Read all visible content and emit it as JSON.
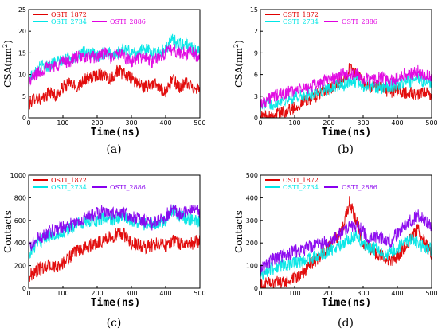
{
  "chart_data": [
    {
      "panel_label": "(a)",
      "type": "line",
      "xlabel": "Time(ns)",
      "ylabel": "CSA(nm²)",
      "ylabel_base": "CSA(nm",
      "ylabel_sup": "2",
      "ylabel_tail": ")",
      "xlim": [
        0,
        500
      ],
      "ylim": [
        0,
        25
      ],
      "xticks": [
        0,
        100,
        200,
        300,
        400,
        500
      ],
      "yticks": [
        0,
        5,
        10,
        15,
        20,
        25
      ],
      "legend": [
        "OSTI_1872",
        "OSTI_2734",
        "OSTI_2886"
      ],
      "series": [
        {
          "name": "OSTI_1872",
          "color": "#e00000",
          "x": [
            0,
            20,
            40,
            60,
            80,
            100,
            120,
            140,
            160,
            180,
            200,
            220,
            240,
            260,
            280,
            300,
            320,
            340,
            360,
            380,
            400,
            420,
            440,
            460,
            480,
            500
          ],
          "y": [
            3,
            5,
            4,
            6,
            5,
            7,
            8,
            7,
            9,
            9,
            10,
            10,
            9,
            11,
            10,
            9,
            8,
            7,
            8,
            7,
            6,
            9,
            7,
            8,
            7,
            7
          ]
        },
        {
          "name": "OSTI_2734",
          "color": "#00e6e6",
          "x": [
            0,
            20,
            40,
            60,
            80,
            100,
            120,
            140,
            160,
            180,
            200,
            220,
            240,
            260,
            280,
            300,
            320,
            340,
            360,
            380,
            400,
            420,
            440,
            460,
            480,
            500
          ],
          "y": [
            9,
            11,
            12,
            12,
            13,
            13,
            14,
            14,
            15,
            15,
            14,
            15,
            15,
            15,
            16,
            15,
            15,
            16,
            15,
            15,
            16,
            18,
            17,
            17,
            16,
            15
          ]
        },
        {
          "name": "OSTI_2886",
          "color": "#e000e0",
          "x": [
            0,
            20,
            40,
            60,
            80,
            100,
            120,
            140,
            160,
            180,
            200,
            220,
            240,
            260,
            280,
            300,
            320,
            340,
            360,
            380,
            400,
            420,
            440,
            460,
            480,
            500
          ],
          "y": [
            8,
            10,
            11,
            12,
            12,
            13,
            13,
            14,
            14,
            14,
            14,
            15,
            14,
            15,
            14,
            13,
            14,
            14,
            13,
            14,
            15,
            16,
            15,
            15,
            15,
            14
          ]
        }
      ]
    },
    {
      "panel_label": "(b)",
      "type": "line",
      "xlabel": "Time(ns)",
      "ylabel": "CSA(nm²)",
      "ylabel_base": "CSA(nm",
      "ylabel_sup": "2",
      "ylabel_tail": ")",
      "xlim": [
        0,
        500
      ],
      "ylim": [
        0,
        15
      ],
      "xticks": [
        0,
        100,
        200,
        300,
        400,
        500
      ],
      "yticks": [
        0,
        3,
        6,
        9,
        12,
        15
      ],
      "legend": [
        "OSTI_1872",
        "OSTI_2734",
        "OSTI_2886"
      ],
      "series": [
        {
          "name": "OSTI_1872",
          "color": "#e00000",
          "x": [
            0,
            20,
            40,
            60,
            80,
            100,
            120,
            140,
            160,
            180,
            200,
            220,
            240,
            260,
            280,
            300,
            320,
            340,
            360,
            380,
            400,
            420,
            440,
            460,
            480,
            500
          ],
          "y": [
            0,
            0.3,
            0.5,
            0.8,
            1,
            1.5,
            2,
            2.5,
            3,
            3.5,
            4,
            4.5,
            5,
            7,
            6,
            5,
            4,
            4.5,
            4,
            3.5,
            4,
            3.5,
            3.5,
            3,
            3.5,
            3
          ]
        },
        {
          "name": "OSTI_2734",
          "color": "#00e6e6",
          "x": [
            0,
            20,
            40,
            60,
            80,
            100,
            120,
            140,
            160,
            180,
            200,
            220,
            240,
            260,
            280,
            300,
            320,
            340,
            360,
            380,
            400,
            420,
            440,
            460,
            480,
            500
          ],
          "y": [
            1.5,
            2,
            2,
            2.5,
            2.5,
            3,
            3,
            3.2,
            3.5,
            3.8,
            4,
            4.5,
            4.5,
            5,
            5,
            4.5,
            4.5,
            4.2,
            4,
            4.5,
            4.5,
            5,
            5,
            5.5,
            5,
            4.5
          ]
        },
        {
          "name": "OSTI_2886",
          "color": "#e000e0",
          "x": [
            0,
            20,
            40,
            60,
            80,
            100,
            120,
            140,
            160,
            180,
            200,
            220,
            240,
            260,
            280,
            300,
            320,
            340,
            360,
            380,
            400,
            420,
            440,
            460,
            480,
            500
          ],
          "y": [
            2,
            2.5,
            3,
            3.2,
            3.5,
            3.8,
            4,
            4.2,
            4.5,
            5,
            5.5,
            5.5,
            6,
            6,
            6,
            5.5,
            5,
            5.5,
            5.5,
            5,
            5.5,
            6,
            6,
            6.5,
            6,
            5.5
          ]
        }
      ]
    },
    {
      "panel_label": "(c)",
      "type": "line",
      "xlabel": "Time(ns)",
      "ylabel": "Contacts",
      "xlim": [
        0,
        500
      ],
      "ylim": [
        0,
        1000
      ],
      "xticks": [
        0,
        100,
        200,
        300,
        400,
        500
      ],
      "yticks": [
        0,
        200,
        400,
        600,
        800,
        1000
      ],
      "legend": [
        "OSTI_1872",
        "OSTI_2734",
        "OSTI_2886"
      ],
      "series": [
        {
          "name": "OSTI_1872",
          "color": "#e00000",
          "x": [
            0,
            20,
            40,
            60,
            80,
            100,
            120,
            140,
            160,
            180,
            200,
            220,
            240,
            260,
            280,
            300,
            320,
            340,
            360,
            380,
            400,
            420,
            440,
            460,
            480,
            500
          ],
          "y": [
            100,
            150,
            180,
            200,
            180,
            220,
            280,
            320,
            350,
            380,
            400,
            430,
            450,
            480,
            470,
            400,
            380,
            360,
            380,
            400,
            380,
            420,
            400,
            380,
            400,
            420
          ]
        },
        {
          "name": "OSTI_2734",
          "color": "#00e6e6",
          "x": [
            0,
            20,
            40,
            60,
            80,
            100,
            120,
            140,
            160,
            180,
            200,
            220,
            240,
            260,
            280,
            300,
            320,
            340,
            360,
            380,
            400,
            420,
            440,
            460,
            480,
            500
          ],
          "y": [
            300,
            380,
            420,
            460,
            480,
            500,
            520,
            560,
            580,
            600,
            600,
            620,
            600,
            620,
            640,
            600,
            580,
            560,
            580,
            560,
            600,
            700,
            650,
            620,
            600,
            580
          ]
        },
        {
          "name": "OSTI_2886",
          "color": "#8800ee",
          "x": [
            0,
            20,
            40,
            60,
            80,
            100,
            120,
            140,
            160,
            180,
            200,
            220,
            240,
            260,
            280,
            300,
            320,
            340,
            360,
            380,
            400,
            420,
            440,
            460,
            480,
            500
          ],
          "y": [
            350,
            420,
            460,
            500,
            520,
            540,
            560,
            580,
            620,
            640,
            660,
            680,
            650,
            680,
            660,
            640,
            620,
            600,
            560,
            600,
            640,
            700,
            660,
            680,
            700,
            680
          ]
        }
      ]
    },
    {
      "panel_label": "(d)",
      "type": "line",
      "xlabel": "Time(ns)",
      "ylabel": "Contacts",
      "xlim": [
        0,
        500
      ],
      "ylim": [
        0,
        500
      ],
      "xticks": [
        0,
        100,
        200,
        300,
        400,
        500
      ],
      "yticks": [
        0,
        100,
        200,
        300,
        400,
        500
      ],
      "legend": [
        "OSTI_1872",
        "OSTI_2734",
        "OSTI_2886"
      ],
      "series": [
        {
          "name": "OSTI_1872",
          "color": "#e00000",
          "x": [
            0,
            20,
            40,
            60,
            80,
            100,
            120,
            140,
            160,
            180,
            200,
            220,
            240,
            260,
            280,
            300,
            320,
            340,
            360,
            380,
            400,
            420,
            440,
            460,
            480,
            500
          ],
          "y": [
            10,
            20,
            30,
            20,
            30,
            40,
            60,
            100,
            120,
            150,
            180,
            220,
            260,
            380,
            300,
            200,
            180,
            150,
            140,
            120,
            140,
            180,
            220,
            260,
            200,
            150
          ]
        },
        {
          "name": "OSTI_2734",
          "color": "#00e6e6",
          "x": [
            0,
            20,
            40,
            60,
            80,
            100,
            120,
            140,
            160,
            180,
            200,
            220,
            240,
            260,
            280,
            300,
            320,
            340,
            360,
            380,
            400,
            420,
            440,
            460,
            480,
            500
          ],
          "y": [
            60,
            80,
            90,
            100,
            100,
            110,
            120,
            130,
            140,
            150,
            170,
            180,
            200,
            220,
            230,
            200,
            180,
            170,
            150,
            160,
            180,
            200,
            220,
            200,
            180,
            170
          ]
        },
        {
          "name": "OSTI_2886",
          "color": "#8800ee",
          "x": [
            0,
            20,
            40,
            60,
            80,
            100,
            120,
            140,
            160,
            180,
            200,
            220,
            240,
            260,
            280,
            300,
            320,
            340,
            360,
            380,
            400,
            420,
            440,
            460,
            480,
            500
          ],
          "y": [
            80,
            110,
            130,
            140,
            150,
            160,
            170,
            180,
            190,
            200,
            210,
            230,
            250,
            270,
            280,
            250,
            220,
            230,
            220,
            210,
            240,
            280,
            300,
            320,
            300,
            280
          ]
        }
      ]
    }
  ]
}
